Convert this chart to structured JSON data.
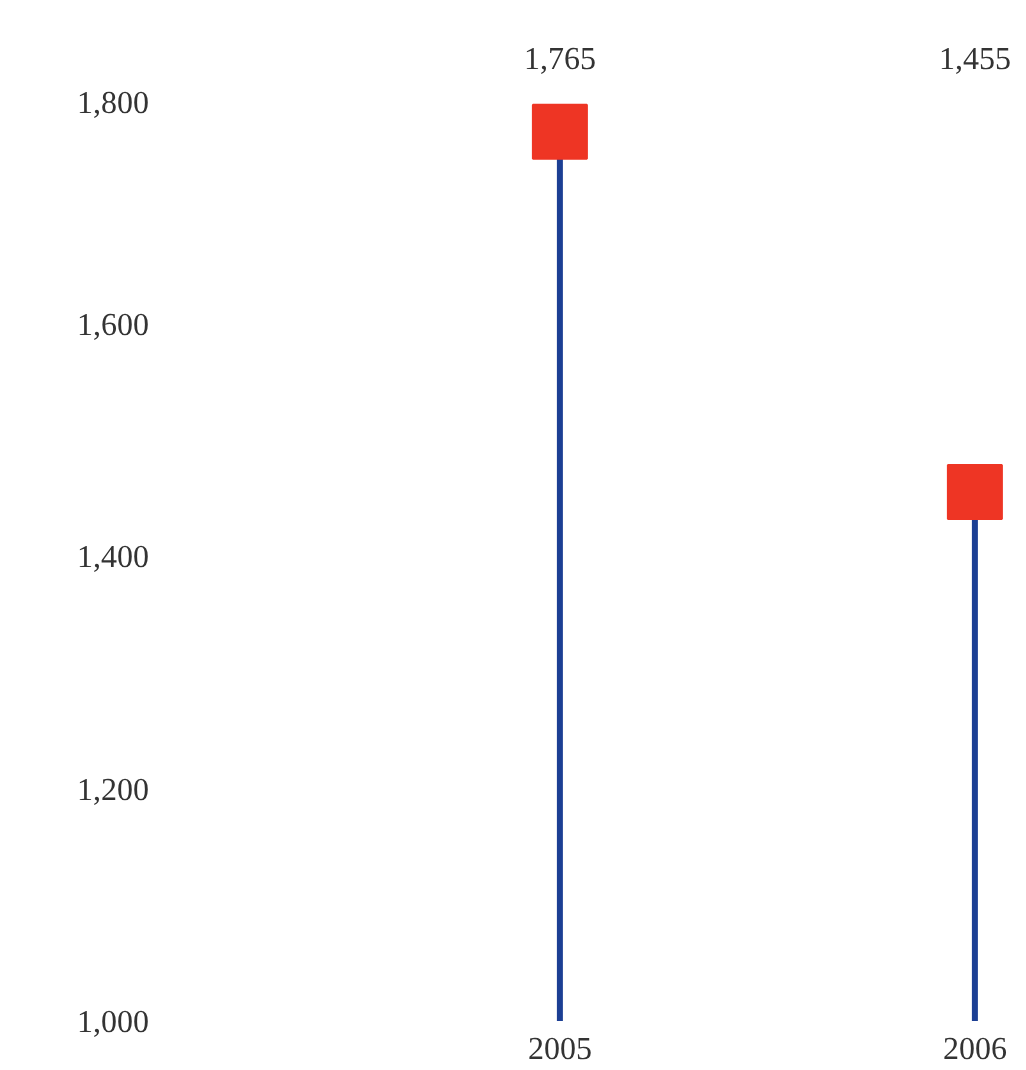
{
  "chart_data": {
    "type": "lollipop",
    "categories": [
      "2005",
      "2006"
    ],
    "series": [
      {
        "color": "#ee3524",
        "values": [
          1765,
          1455
        ]
      }
    ],
    "ylim": [
      1000,
      1800
    ],
    "yticks": [
      {
        "value": 1000,
        "label": "1,000"
      },
      {
        "value": 1200,
        "label": "1,200"
      },
      {
        "value": 1400,
        "label": "1,400"
      },
      {
        "value": 1600,
        "label": "1,600"
      },
      {
        "value": 1800,
        "label": "1,800"
      }
    ],
    "value_labels": [
      "1,765",
      "1,455"
    ],
    "marker": "square",
    "grid": false
  }
}
